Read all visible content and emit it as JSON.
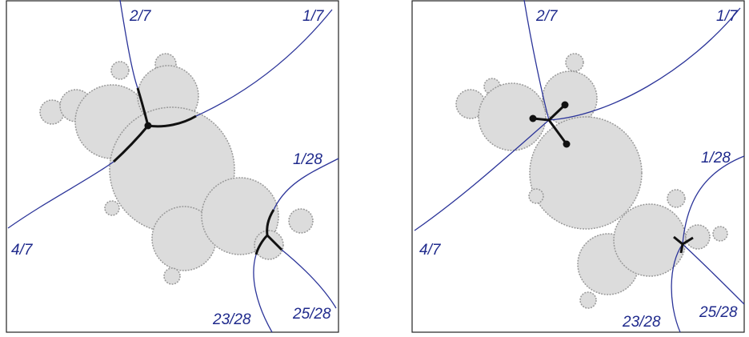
{
  "panels": [
    {
      "ray_labels": [
        "2/7",
        "1/7",
        "4/7",
        "1/28",
        "25/28",
        "23/28"
      ]
    },
    {
      "ray_labels": [
        "2/7",
        "1/7",
        "4/7",
        "1/28",
        "25/28",
        "23/28"
      ]
    }
  ]
}
